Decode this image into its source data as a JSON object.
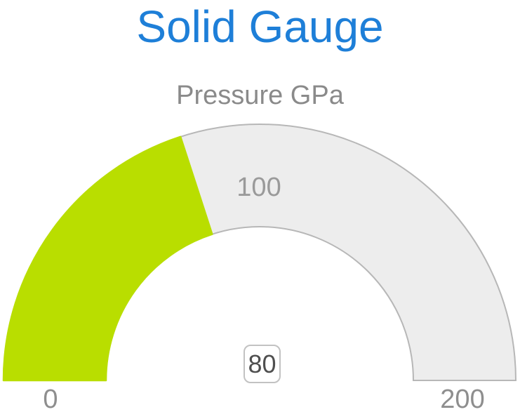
{
  "header": {
    "title": "Solid Gauge",
    "subtitle": "Pressure GPa"
  },
  "chart_data": {
    "type": "gauge",
    "title": "Solid Gauge",
    "subtitle": "Pressure GPa",
    "min": 0,
    "max": 200,
    "value": 80,
    "value_label": "80",
    "start_angle_deg": 180,
    "end_angle_deg": 0,
    "tick_labels": {
      "min": "0",
      "mid": "100",
      "max": "200"
    },
    "legend": "none",
    "colors": {
      "title": "#1e7fd8",
      "subtitle": "#8a8a8a",
      "value_fill": "#b9de00",
      "track_fill": "#ededed",
      "track_stroke": "#b7b7b7",
      "tick_text": "#8e8e8e",
      "value_text": "#4f4f4f",
      "value_box_border": "#c2c2c2",
      "background": "#ffffff"
    }
  }
}
